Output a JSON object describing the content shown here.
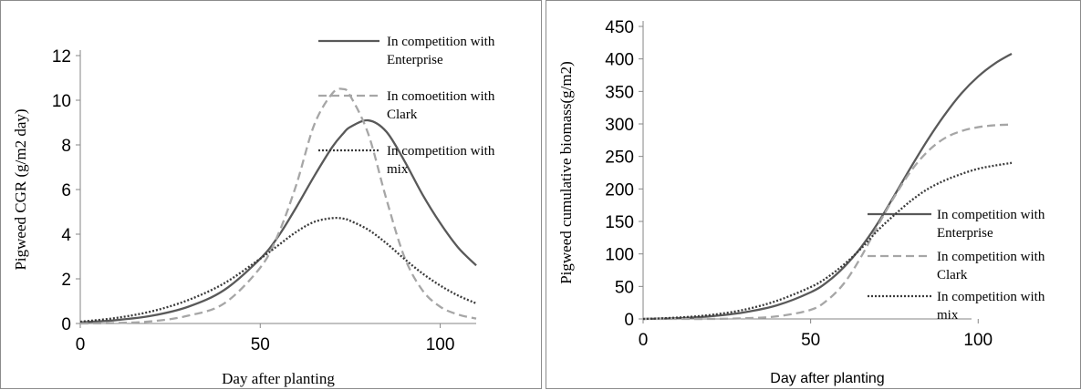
{
  "chart_data": [
    {
      "type": "line",
      "xlabel": "Day after planting",
      "ylabel": "Pigweed CGR (g/m2 day)",
      "xlim": [
        0,
        110
      ],
      "ylim": [
        0,
        12
      ],
      "xticks": [
        0,
        50,
        100
      ],
      "yticks": [
        0,
        2,
        4,
        6,
        8,
        10,
        12
      ],
      "grid": false,
      "legend_position": "top-right",
      "x": [
        0,
        10,
        20,
        30,
        40,
        50,
        55,
        60,
        65,
        70,
        73,
        75,
        80,
        85,
        90,
        95,
        100,
        105,
        110
      ],
      "series": [
        {
          "name": "In competition with Enterprise",
          "style": "solid",
          "color": "#595959",
          "values": [
            0.05,
            0.15,
            0.35,
            0.75,
            1.5,
            2.9,
            3.9,
            5.2,
            6.6,
            7.9,
            8.5,
            8.8,
            9.1,
            8.6,
            7.3,
            5.8,
            4.5,
            3.4,
            2.6
          ]
        },
        {
          "name": "In comoetition with Clark",
          "style": "dashed",
          "color": "#a6a6a6",
          "values": [
            0.0,
            0.02,
            0.1,
            0.35,
            0.9,
            2.5,
            4.0,
            6.2,
            8.9,
            10.3,
            10.5,
            10.2,
            8.5,
            5.6,
            3.0,
            1.5,
            0.75,
            0.4,
            0.22
          ]
        },
        {
          "name": "In competition with mix",
          "style": "dotted",
          "color": "#3a3a3a",
          "values": [
            0.08,
            0.25,
            0.55,
            1.05,
            1.8,
            2.9,
            3.5,
            4.1,
            4.55,
            4.72,
            4.7,
            4.6,
            4.2,
            3.6,
            2.9,
            2.25,
            1.7,
            1.25,
            0.9
          ]
        }
      ]
    },
    {
      "type": "line",
      "xlabel": "Day after planting",
      "ylabel": "Pigweed cumulative biomass(g/m2)",
      "xlim": [
        0,
        110
      ],
      "ylim": [
        0,
        450
      ],
      "xticks": [
        0,
        50,
        100
      ],
      "yticks": [
        0,
        50,
        100,
        150,
        200,
        250,
        300,
        350,
        400,
        450
      ],
      "grid": false,
      "legend_position": "right",
      "x": [
        0,
        10,
        20,
        30,
        40,
        50,
        55,
        60,
        65,
        70,
        75,
        80,
        85,
        90,
        95,
        100,
        105,
        110
      ],
      "series": [
        {
          "name": "In competition with Enterprise",
          "style": "solid",
          "color": "#595959",
          "values": [
            0,
            1,
            4,
            10,
            21,
            41,
            57,
            80,
            110,
            147,
            190,
            234,
            276,
            314,
            347,
            373,
            393,
            408
          ]
        },
        {
          "name": "In competition with Clark",
          "style": "dashed",
          "color": "#a6a6a6",
          "values": [
            0,
            0,
            0,
            1,
            4,
            14,
            29,
            55,
            95,
            143,
            188,
            228,
            258,
            278,
            289,
            295,
            298,
            299
          ]
        },
        {
          "name": "In competition with mix",
          "style": "dotted",
          "color": "#3a3a3a",
          "values": [
            0,
            2,
            6,
            14,
            28,
            49,
            64,
            84,
            108,
            136,
            160,
            182,
            200,
            213,
            223,
            231,
            236,
            240
          ]
        }
      ]
    }
  ]
}
